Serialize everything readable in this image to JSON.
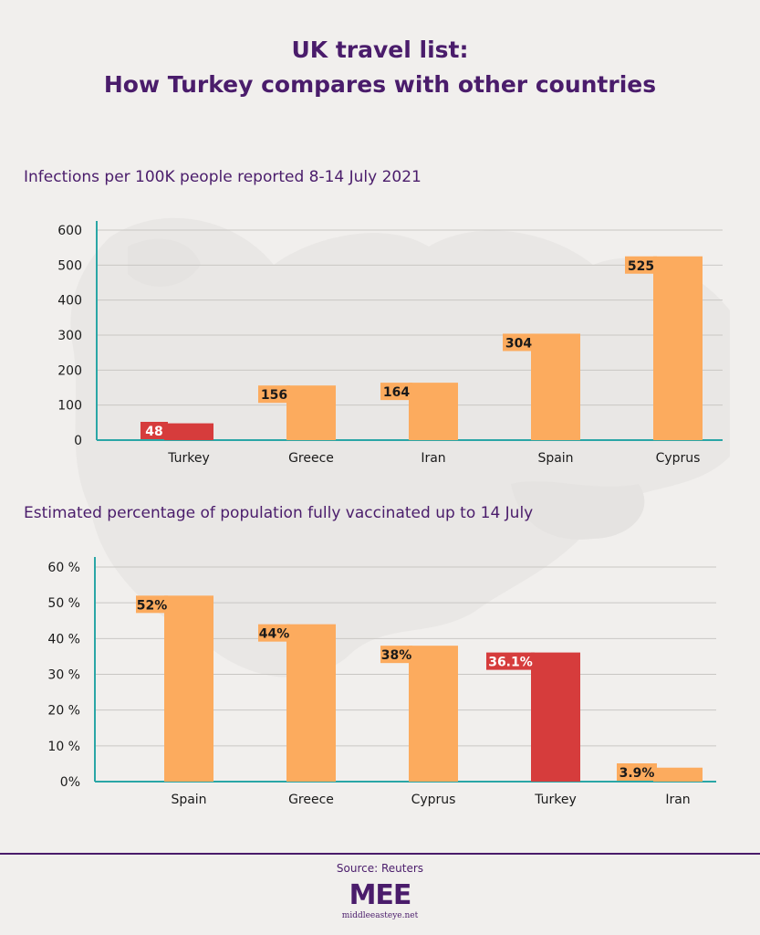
{
  "header": {
    "line1": "UK travel list:",
    "line2": "How Turkey compares with other countries"
  },
  "colors": {
    "bar": "#fcab5e",
    "highlight": "#d63c3c",
    "axis": "#2aa6a6",
    "grid": "#c9c7c4",
    "text": "#1a1a1a",
    "title": "#4a1c6b"
  },
  "chart_data": [
    {
      "type": "bar",
      "title": "Infections per 100K people reported 8-14 July 2021",
      "categories": [
        "Turkey",
        "Greece",
        "Iran",
        "Spain",
        "Cyprus"
      ],
      "values": [
        48,
        156,
        164,
        304,
        525
      ],
      "value_labels": [
        "48",
        "156",
        "164",
        "304",
        "525"
      ],
      "highlight": [
        "Turkey"
      ],
      "yticks": [
        "0",
        "100",
        "200",
        "300",
        "400",
        "500",
        "600"
      ],
      "ylim": [
        0,
        600
      ],
      "xlabel": "",
      "ylabel": ""
    },
    {
      "type": "bar",
      "title": "Estimated percentage of population fully vaccinated up to 14 July",
      "categories": [
        "Spain",
        "Greece",
        "Cyprus",
        "Turkey",
        "Iran"
      ],
      "values": [
        52,
        44,
        38,
        36.1,
        3.9
      ],
      "value_labels": [
        "52%",
        "44%",
        "38%",
        "36.1%",
        "3.9%"
      ],
      "highlight": [
        "Turkey"
      ],
      "yticks": [
        "0%",
        "10 %",
        "20 %",
        "30 %",
        "40 %",
        "50 %",
        "60 %"
      ],
      "ylim": [
        0,
        60
      ],
      "xlabel": "",
      "ylabel": ""
    }
  ],
  "footer": {
    "source": "Source: Reuters",
    "logo": "MEE",
    "site": "middleeasteye.net"
  }
}
